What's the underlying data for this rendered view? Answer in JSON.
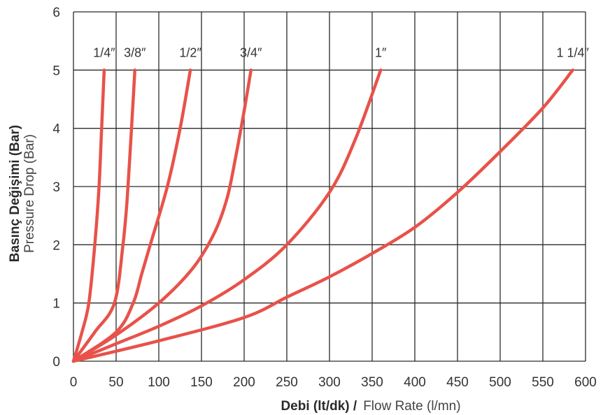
{
  "chart_data": {
    "type": "line",
    "xlim": [
      0,
      600
    ],
    "ylim": [
      0,
      6
    ],
    "x_ticks": [
      0,
      50,
      100,
      150,
      200,
      250,
      300,
      350,
      400,
      450,
      500,
      550,
      600
    ],
    "y_ticks": [
      0,
      1,
      2,
      3,
      4,
      5,
      6
    ],
    "grid": true,
    "xlabel_bold": "Debi (lt/dk) /",
    "xlabel_light": "Flow Rate (l/mn)",
    "ylabel_bold": "Basınç Değişimi (Bar)",
    "ylabel_light": "Pressure Drop (Bar)",
    "line_color": "#e8524a",
    "series": [
      {
        "name": "1/4″",
        "points": [
          [
            0,
            0
          ],
          [
            10,
            0.5
          ],
          [
            18,
            1.0
          ],
          [
            25,
            2.0
          ],
          [
            30,
            3.0
          ],
          [
            33,
            4.0
          ],
          [
            36,
            5.0
          ]
        ]
      },
      {
        "name": "3/8″",
        "points": [
          [
            0,
            0
          ],
          [
            25,
            0.5
          ],
          [
            48,
            1.0
          ],
          [
            58,
            2.0
          ],
          [
            63,
            2.8
          ],
          [
            68,
            4.0
          ],
          [
            72,
            5.0
          ]
        ]
      },
      {
        "name": "1/2″",
        "points": [
          [
            0,
            0
          ],
          [
            50,
            0.5
          ],
          [
            70,
            1.0
          ],
          [
            80,
            1.5
          ],
          [
            90,
            2.0
          ],
          [
            110,
            3.0
          ],
          [
            125,
            4.0
          ],
          [
            137,
            5.0
          ]
        ]
      },
      {
        "name": "3/4″",
        "points": [
          [
            0,
            0
          ],
          [
            50,
            0.45
          ],
          [
            100,
            1.0
          ],
          [
            140,
            1.6
          ],
          [
            165,
            2.2
          ],
          [
            180,
            2.8
          ],
          [
            190,
            3.5
          ],
          [
            200,
            4.3
          ],
          [
            208,
            5.0
          ]
        ]
      },
      {
        "name": "1″",
        "points": [
          [
            0,
            0
          ],
          [
            50,
            0.3
          ],
          [
            100,
            0.6
          ],
          [
            150,
            0.95
          ],
          [
            200,
            1.4
          ],
          [
            250,
            2.0
          ],
          [
            300,
            2.9
          ],
          [
            330,
            3.8
          ],
          [
            360,
            5.0
          ]
        ]
      },
      {
        "name": "1 1/4″",
        "points": [
          [
            0,
            0
          ],
          [
            100,
            0.35
          ],
          [
            200,
            0.75
          ],
          [
            250,
            1.1
          ],
          [
            300,
            1.45
          ],
          [
            350,
            1.85
          ],
          [
            400,
            2.3
          ],
          [
            450,
            2.9
          ],
          [
            500,
            3.6
          ],
          [
            550,
            4.35
          ],
          [
            585,
            5.0
          ]
        ]
      }
    ]
  }
}
